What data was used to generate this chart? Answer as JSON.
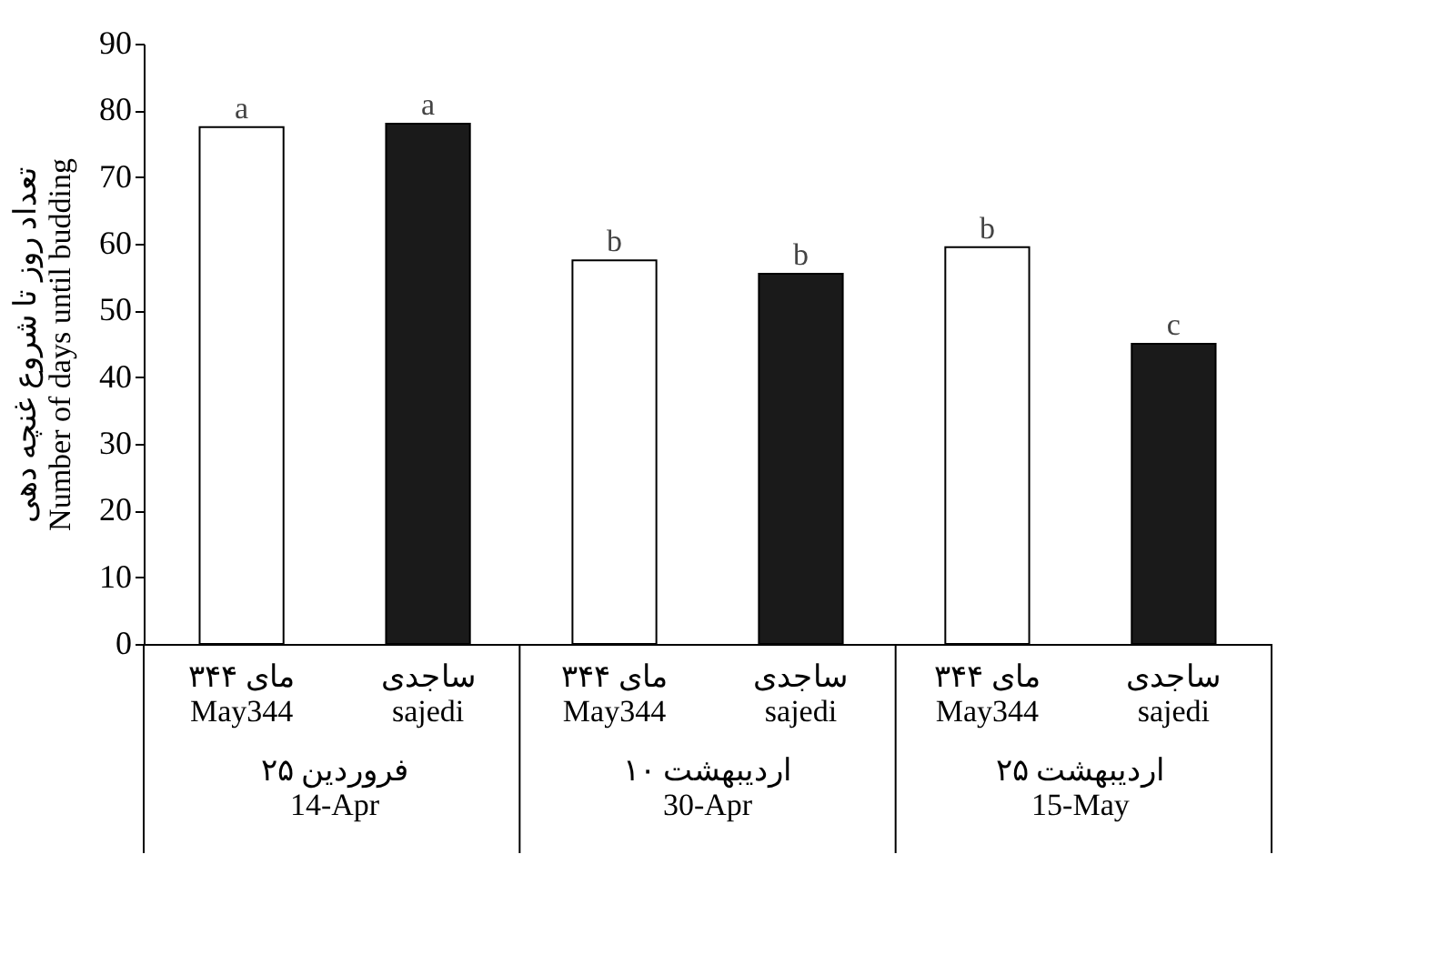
{
  "chart_data": {
    "type": "bar",
    "ylabel": "تعداد روز تا شروع غنچه دهی\nNumber of days until budding",
    "categories": [
      "مای ۳۴۴\nMay344",
      "ساجدی\nsajedi",
      "مای ۳۴۴\nMay344",
      "ساجدی\nsajedi",
      "مای ۳۴۴\nMay344",
      "ساجدی\nsajedi"
    ],
    "values": [
      77.5,
      78,
      57.5,
      55.5,
      59.5,
      45
    ],
    "colors": [
      "#ffffff",
      "#1a1a1a",
      "#ffffff",
      "#1a1a1a",
      "#ffffff",
      "#1a1a1a"
    ],
    "value_labels": [
      "a",
      "a",
      "b",
      "b",
      "b",
      "c"
    ],
    "annotations": [
      "۲۵ فروردین\n14-Apr",
      "۱۰ اردیبهشت\n30-Apr",
      "۲۵ اردیبهشت\n15-May"
    ],
    "ylim": [
      0,
      90
    ],
    "yticks": [
      0,
      10,
      20,
      30,
      40,
      50,
      60,
      70,
      80,
      90
    ],
    "grid": false
  }
}
